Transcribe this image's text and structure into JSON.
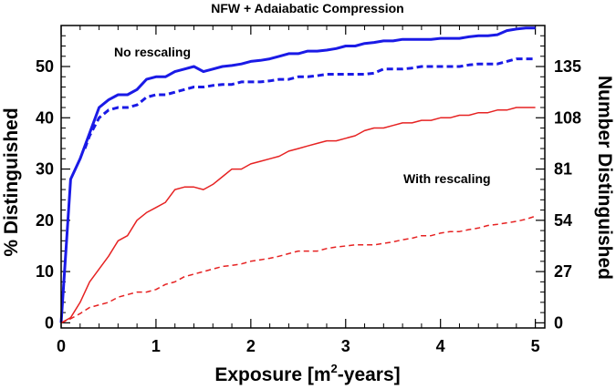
{
  "chart_data": {
    "type": "line",
    "title": "NFW + Adaiabatic Compression",
    "xlabel": {
      "prefix": "Exposure [m",
      "sup": "2",
      "suffix": "-years]"
    },
    "ylabel": "% Distinguished",
    "y2label": "Number Distinguished",
    "xlim": [
      0,
      5.1
    ],
    "ylim": [
      -1,
      58
    ],
    "x_ticks": [
      "0",
      "1",
      "2",
      "3",
      "4",
      "5"
    ],
    "y_ticks": [
      "0",
      "10",
      "20",
      "30",
      "40",
      "50"
    ],
    "y2_ticks": [
      "0",
      "27",
      "54",
      "81",
      "108",
      "135"
    ],
    "y2_scale": 2.7,
    "annotations": [
      "No rescaling",
      "With rescaling"
    ],
    "series": [
      {
        "color": "#1a1ae6",
        "style": "solid",
        "width": "thick",
        "x": [
          0,
          0.1,
          0.2,
          0.3,
          0.4,
          0.5,
          0.6,
          0.7,
          0.8,
          0.9,
          1.0,
          1.1,
          1.2,
          1.3,
          1.4,
          1.5,
          1.6,
          1.7,
          1.8,
          1.9,
          2.0,
          2.1,
          2.2,
          2.3,
          2.4,
          2.5,
          2.6,
          2.7,
          2.8,
          2.9,
          3.0,
          3.1,
          3.2,
          3.3,
          3.4,
          3.5,
          3.6,
          3.7,
          3.8,
          3.9,
          4.0,
          4.1,
          4.2,
          4.3,
          4.4,
          4.5,
          4.6,
          4.7,
          4.8,
          4.9,
          5.0
        ],
        "values": [
          0,
          28,
          32,
          37,
          42,
          43.5,
          44.5,
          44.5,
          45.5,
          47.5,
          48,
          48,
          49,
          49.5,
          50,
          49,
          49.5,
          50,
          50.2,
          50.5,
          51,
          51.2,
          51.5,
          52,
          52.5,
          52.5,
          53,
          53,
          53.2,
          53.5,
          54,
          54,
          54.5,
          54.7,
          55,
          55,
          55.3,
          55.3,
          55.3,
          55.3,
          55.5,
          55.5,
          55.5,
          55.8,
          56,
          56,
          56.2,
          57,
          57.3,
          57.5,
          57.5
        ]
      },
      {
        "color": "#1a1ae6",
        "style": "dashed",
        "width": "thick",
        "x": [
          0.25,
          0.3,
          0.4,
          0.5,
          0.6,
          0.7,
          0.8,
          0.9,
          1.0,
          1.1,
          1.2,
          1.3,
          1.4,
          1.5,
          1.6,
          1.7,
          1.8,
          1.9,
          2.0,
          2.1,
          2.2,
          2.3,
          2.4,
          2.5,
          2.6,
          2.7,
          2.8,
          2.9,
          3.0,
          3.1,
          3.2,
          3.3,
          3.4,
          3.5,
          3.6,
          3.7,
          3.8,
          3.9,
          4.0,
          4.1,
          4.2,
          4.3,
          4.4,
          4.5,
          4.6,
          4.7,
          4.8,
          4.9,
          5.0
        ],
        "values": [
          34,
          36.5,
          40,
          41.5,
          42,
          42,
          42.5,
          44,
          44.5,
          44.5,
          45,
          45.5,
          46,
          46,
          46.3,
          46.5,
          46.5,
          47,
          47,
          47,
          47.2,
          47.5,
          47.5,
          48,
          48,
          48.2,
          48.5,
          48.5,
          48.5,
          48.5,
          48.5,
          48.7,
          49.5,
          49.5,
          49.5,
          49.7,
          50,
          50,
          50,
          50,
          50,
          50.3,
          50.5,
          50.5,
          50.5,
          51,
          51.5,
          51.5,
          51.5
        ]
      },
      {
        "color": "#e62222",
        "style": "solid",
        "width": "thin",
        "x": [
          0,
          0.1,
          0.2,
          0.3,
          0.4,
          0.5,
          0.6,
          0.7,
          0.8,
          0.9,
          1.0,
          1.1,
          1.2,
          1.3,
          1.4,
          1.5,
          1.6,
          1.7,
          1.8,
          1.9,
          2.0,
          2.1,
          2.2,
          2.3,
          2.4,
          2.5,
          2.6,
          2.7,
          2.8,
          2.9,
          3.0,
          3.1,
          3.2,
          3.3,
          3.4,
          3.5,
          3.6,
          3.7,
          3.8,
          3.9,
          4.0,
          4.1,
          4.2,
          4.3,
          4.4,
          4.5,
          4.6,
          4.7,
          4.8,
          4.9,
          5.0
        ],
        "values": [
          0,
          1,
          4,
          8,
          10.5,
          13,
          16,
          17,
          20,
          21.5,
          22.5,
          23.5,
          26,
          26.5,
          26.5,
          26,
          27,
          28.5,
          30,
          30,
          31,
          31.5,
          32,
          32.5,
          33.5,
          34,
          34.5,
          35,
          35.5,
          35.5,
          36,
          36.5,
          37.5,
          38,
          38,
          38.5,
          39,
          39,
          39.5,
          39.5,
          40,
          40,
          40.5,
          40.5,
          41,
          41,
          41.5,
          41.5,
          42,
          42,
          42
        ]
      },
      {
        "color": "#e62222",
        "style": "dashed",
        "width": "thin",
        "x": [
          0,
          0.1,
          0.2,
          0.3,
          0.4,
          0.5,
          0.6,
          0.7,
          0.8,
          0.9,
          1.0,
          1.1,
          1.2,
          1.3,
          1.4,
          1.5,
          1.6,
          1.7,
          1.8,
          1.9,
          2.0,
          2.1,
          2.2,
          2.3,
          2.4,
          2.5,
          2.6,
          2.7,
          2.8,
          2.9,
          3.0,
          3.1,
          3.2,
          3.3,
          3.4,
          3.5,
          3.6,
          3.7,
          3.8,
          3.9,
          4.0,
          4.1,
          4.2,
          4.3,
          4.4,
          4.5,
          4.6,
          4.7,
          4.8,
          4.9,
          5.0
        ],
        "values": [
          0,
          0.8,
          1.8,
          3,
          3.5,
          4,
          5,
          5.5,
          6,
          6,
          6.5,
          7.5,
          8,
          9,
          9.5,
          10,
          10.5,
          11,
          11.2,
          11.5,
          12,
          12.3,
          12.6,
          13,
          13.5,
          14,
          14,
          14,
          14.5,
          14.8,
          15,
          15.2,
          15.2,
          15.2,
          15.5,
          15.8,
          16.2,
          16.5,
          17,
          17,
          17.5,
          17.8,
          17.8,
          18.2,
          18.5,
          19,
          19.2,
          19.5,
          19.8,
          20.2,
          20.8
        ]
      }
    ]
  }
}
